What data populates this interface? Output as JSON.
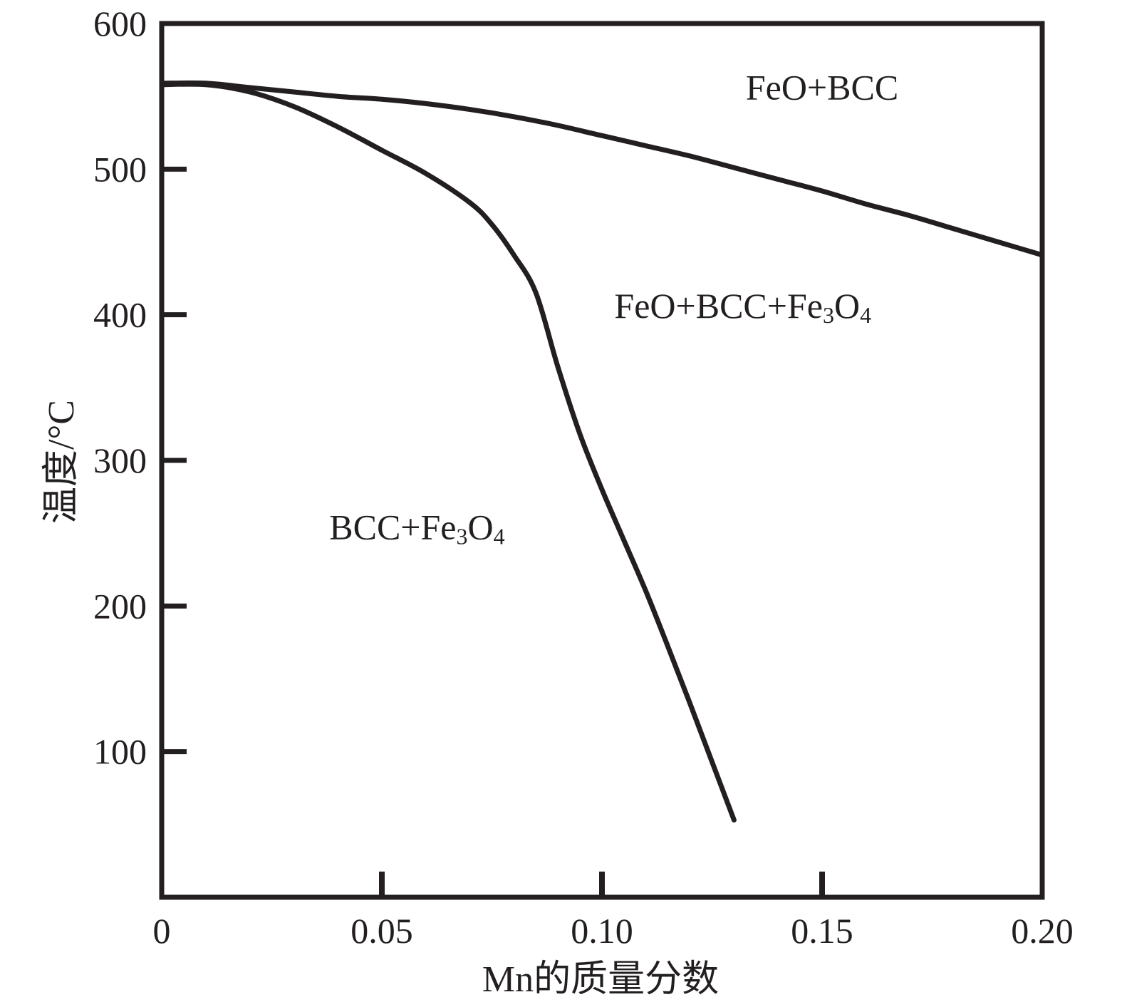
{
  "chart_data": {
    "type": "line",
    "xlabel": "Mn的质量分数",
    "ylabel": "温度/°C",
    "xlim": [
      0,
      0.2
    ],
    "ylim": [
      0,
      600
    ],
    "x_ticks": [
      {
        "value": 0,
        "label": "0"
      },
      {
        "value": 0.05,
        "label": "0.05"
      },
      {
        "value": 0.1,
        "label": "0.10"
      },
      {
        "value": 0.15,
        "label": "0.15"
      },
      {
        "value": 0.2,
        "label": "0.20"
      }
    ],
    "y_ticks": [
      {
        "value": 100,
        "label": "100"
      },
      {
        "value": 200,
        "label": "200"
      },
      {
        "value": 300,
        "label": "300"
      },
      {
        "value": 400,
        "label": "400"
      },
      {
        "value": 500,
        "label": "500"
      },
      {
        "value": 600,
        "label": "600"
      }
    ],
    "grid": false,
    "line_color": "#231f20",
    "series": [
      {
        "points": [
          [
            0,
            559
          ],
          [
            0.01,
            559
          ],
          [
            0.02,
            556
          ],
          [
            0.03,
            553
          ],
          [
            0.04,
            550
          ],
          [
            0.05,
            548
          ],
          [
            0.06,
            545
          ],
          [
            0.07,
            541
          ],
          [
            0.08,
            536
          ],
          [
            0.09,
            530
          ],
          [
            0.1,
            523
          ],
          [
            0.11,
            516
          ],
          [
            0.12,
            509
          ],
          [
            0.13,
            501
          ],
          [
            0.14,
            493
          ],
          [
            0.15,
            485
          ],
          [
            0.16,
            476
          ],
          [
            0.17,
            468
          ],
          [
            0.18,
            459
          ],
          [
            0.19,
            450
          ],
          [
            0.2,
            441
          ]
        ]
      },
      {
        "points": [
          [
            0,
            558
          ],
          [
            0.01,
            558
          ],
          [
            0.02,
            553
          ],
          [
            0.03,
            543
          ],
          [
            0.04,
            529
          ],
          [
            0.05,
            513
          ],
          [
            0.06,
            497
          ],
          [
            0.07,
            477
          ],
          [
            0.075,
            462
          ],
          [
            0.08,
            441
          ],
          [
            0.085,
            415
          ],
          [
            0.09,
            364
          ],
          [
            0.095,
            318
          ],
          [
            0.1,
            280
          ],
          [
            0.105,
            245
          ],
          [
            0.11,
            210
          ],
          [
            0.115,
            172
          ],
          [
            0.12,
            133
          ],
          [
            0.125,
            93
          ],
          [
            0.13,
            53
          ]
        ]
      }
    ],
    "annotations": [
      {
        "parts": [
          {
            "text": "FeO+BCC"
          }
        ],
        "x": 0.15,
        "y": 548
      },
      {
        "parts": [
          {
            "text": "FeO+BCC+Fe"
          },
          {
            "text": "3",
            "sub": true
          },
          {
            "text": "O"
          },
          {
            "text": "4",
            "sub": true
          }
        ],
        "x": 0.132,
        "y": 398
      },
      {
        "parts": [
          {
            "text": "BCC+Fe"
          },
          {
            "text": "3",
            "sub": true
          },
          {
            "text": "O"
          },
          {
            "text": "4",
            "sub": true
          }
        ],
        "x": 0.058,
        "y": 246
      }
    ]
  }
}
